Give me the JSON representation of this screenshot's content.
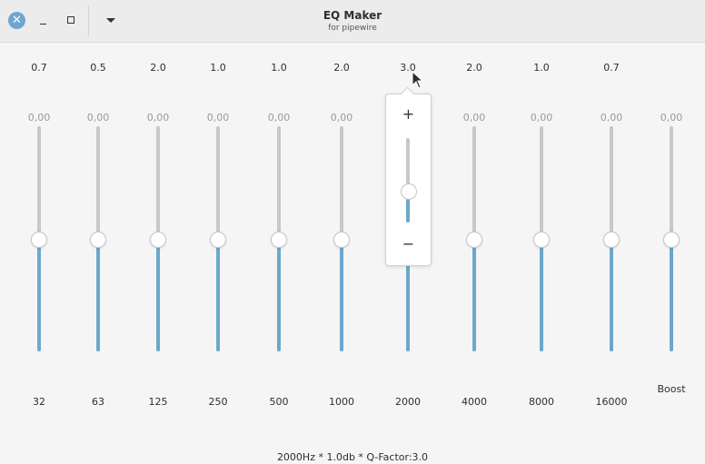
{
  "window": {
    "title": "EQ Maker",
    "subtitle": "for pipewire",
    "close_icon": "close-icon",
    "minimize_icon": "minimize-icon",
    "maximize_icon": "maximize-icon",
    "menu_icon": "chevron-down-icon"
  },
  "bands": [
    {
      "q": "0.7",
      "gain": "0,00",
      "freq": "32"
    },
    {
      "q": "0.5",
      "gain": "0,00",
      "freq": "63"
    },
    {
      "q": "2.0",
      "gain": "0,00",
      "freq": "125"
    },
    {
      "q": "1.0",
      "gain": "0,00",
      "freq": "250"
    },
    {
      "q": "1.0",
      "gain": "0,00",
      "freq": "500"
    },
    {
      "q": "2.0",
      "gain": "0,00",
      "freq": "1000"
    },
    {
      "q": "3.0",
      "gain": "",
      "freq": "2000"
    },
    {
      "q": "2.0",
      "gain": "0,00",
      "freq": "4000"
    },
    {
      "q": "1.0",
      "gain": "0,00",
      "freq": "8000"
    },
    {
      "q": "0.7",
      "gain": "0,00",
      "freq": "16000"
    }
  ],
  "boost": {
    "gain": "0,00",
    "label": "Boost"
  },
  "q_popover": {
    "plus": "+",
    "minus": "−",
    "plus_icon": "plus-icon",
    "minus_icon": "minus-icon"
  },
  "status": "2000Hz * 1.0db * Q-Factor:3.0",
  "colors": {
    "accent": "#6ca8cb",
    "track": "#c8c8c8",
    "close_button": "#6ea6d2"
  }
}
